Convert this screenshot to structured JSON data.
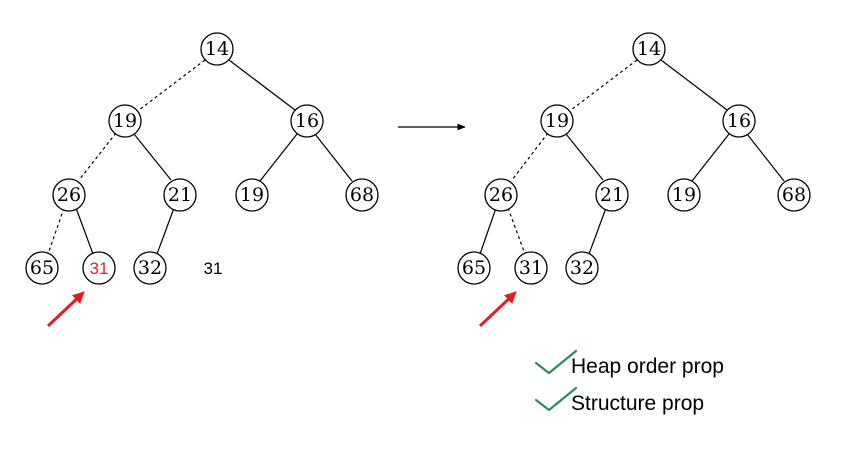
{
  "colors": {
    "pointer_arrow": "#e02020",
    "highlight_text": "#e02020",
    "check_mark": "#2e8b57",
    "node_stroke": "#000000"
  },
  "before_tree": {
    "root": "14",
    "level1_left": "19",
    "level1_right": "16",
    "level2_a": "26",
    "level2_b": "21",
    "level2_c": "19",
    "level2_d": "68",
    "level3_a": "65",
    "level3_b_highlighted": "31",
    "level3_c": "32",
    "floating_value": "31",
    "dashed_path": [
      "14",
      "19",
      "26",
      "65"
    ]
  },
  "after_tree": {
    "root": "14",
    "level1_left": "19",
    "level1_right": "16",
    "level2_a": "26",
    "level2_b": "21",
    "level2_c": "19",
    "level2_d": "68",
    "level3_a": "65",
    "level3_b": "31",
    "level3_c": "32",
    "dashed_path": [
      "14",
      "19",
      "26",
      "31"
    ]
  },
  "icons": {
    "transition_arrow": "right-arrow-icon",
    "pointer_arrow": "red-pointer-arrow-icon",
    "check": "check-icon"
  },
  "checklist": [
    {
      "label": "Heap order prop"
    },
    {
      "label": "Structure prop"
    }
  ]
}
